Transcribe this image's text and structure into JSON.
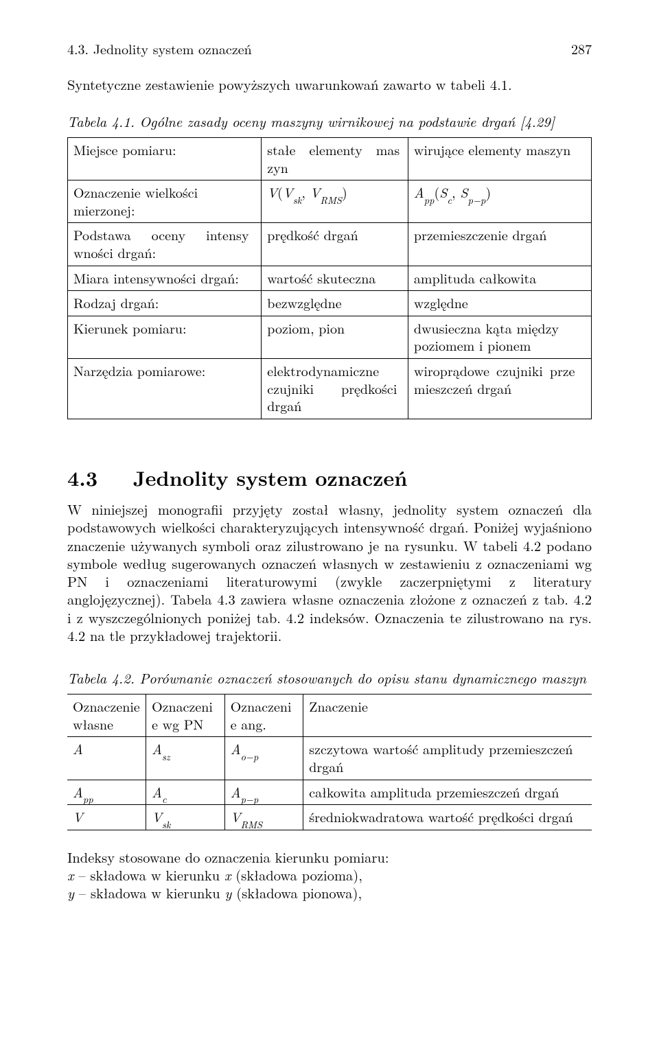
{
  "header": {
    "section_ref": "4.3. Jednolity system oznaczeń",
    "page_number": "287"
  },
  "intro_paragraph": "Syntetyczne zestawienie powyższych uwarunkowań zawarto w tabeli 4.1.",
  "table1": {
    "caption": "Tabela 4.1. Ogólne zasady oceny maszyny wirnikowej na podstawie drgań [4.29]",
    "rows": [
      {
        "c1": "Miejsce pomiaru:",
        "c2_html": "stałe&nbsp;&nbsp;elementy&nbsp;&nbsp;maszyn",
        "c2_justbetween": false,
        "c3": "wirujące elementy maszyn"
      },
      {
        "c1": "Oznaczenie wielkości mierzonej:",
        "c2_html": "<span class=\"math\">V</span>(<span class=\"math\">V<sub>sk</sub></span>, <span class=\"math\">V<sub>RMS</sub></span>)",
        "c3_html": "<span class=\"math\">A<sub>pp</sub></span>(<span class=\"math\">S<sub>c</sub></span>, <span class=\"math\">S<sub>p−p</sub></span>)"
      },
      {
        "c1_html": "Podstawa&nbsp;&nbsp;&nbsp;oceny&nbsp;&nbsp;&nbsp;intensywności drgań:",
        "c2": "prędkość drgań",
        "c3": "przemieszczenie drgań"
      },
      {
        "c1": "Miara intensywności drgań:",
        "c2": "wartość skuteczna",
        "c3": "amplituda całkowita"
      },
      {
        "c1": "Rodzaj drgań:",
        "c2": "bezwzględne",
        "c3": "względne"
      },
      {
        "c1": "Kierunek pomiaru:",
        "c2": "poziom, pion",
        "c3": "dwusieczna kąta między poziomem i pionem"
      },
      {
        "c1": "Narzędzia pomiarowe:",
        "c2_html": "elektrodynamiczne czujniki&nbsp;&nbsp;&nbsp;&nbsp;prędkości drgań",
        "c3_html": "wiroprądowe&nbsp;czujniki&nbsp;przemieszczeń drgań"
      }
    ]
  },
  "section": {
    "number": "4.3",
    "title": "Jednolity system oznaczeń"
  },
  "body_paragraph": "W niniejszej monografii przyjęty został własny, jednolity system oznaczeń dla podstawowych wielkości charakteryzujących intensywność drgań. Poniżej wyjaśniono znaczenie używanych symboli oraz zilustrowano je na rysunku. W tabeli 4.2 podano symbole według sugerowanych oznaczeń własnych w zestawieniu z oznaczeniami wg PN i oznaczeniami literaturowymi (zwykle zaczerpniętymi z literatury anglojęzycznej). Tabela 4.3 zawiera własne oznaczenia złożone z oznaczeń z tab. 4.2 i z wyszczególnionych poniżej tab. 4.2 indeksów. Oznaczenia te zilustrowano na rys. 4.2 na tle przykładowej trajektorii.",
  "table2": {
    "caption": "Tabela 4.2. Porównanie oznaczeń stosowanych do opisu stanu dynamicznego maszyn",
    "head": [
      "Oznaczenie własne",
      "Oznaczenie wg PN",
      "Oznaczenie ang.",
      "Znaczenie"
    ],
    "rows": [
      {
        "c1_html": "<span class=\"math\">A</span>",
        "c2_html": "<span class=\"math\">A<sub>sz</sub></span>",
        "c3_html": "<span class=\"math\">A<sub>o−p</sub></span>",
        "c4": "szczytowa wartość amplitudy przemieszczeń drgań"
      },
      {
        "c1_html": "<span class=\"math\">A<sub>pp</sub></span>",
        "c2_html": "<span class=\"math\">A<sub>c</sub></span>",
        "c3_html": "<span class=\"math\">A<sub>p−p</sub></span>",
        "c4": "całkowita amplituda przemieszczeń drgań"
      },
      {
        "c1_html": "<span class=\"math\">V</span>",
        "c2_html": "<span class=\"math\">V<sub>sk</sub></span>",
        "c3_html": "<span class=\"math\">V<sub>RMS</sub></span>",
        "c4": "średniokwadratowa wartość prędkości drgań"
      }
    ]
  },
  "indices": {
    "headline": "Indeksy stosowane do oznaczenia kierunku pomiaru:",
    "line1_html": "<span class=\"math\">x</span> – składowa w kierunku <span class=\"math\">x</span> (składowa pozioma),",
    "line2_html": "<span class=\"math\">y</span> – składowa w kierunku <span class=\"math\">y</span> (składowa pionowa),"
  }
}
